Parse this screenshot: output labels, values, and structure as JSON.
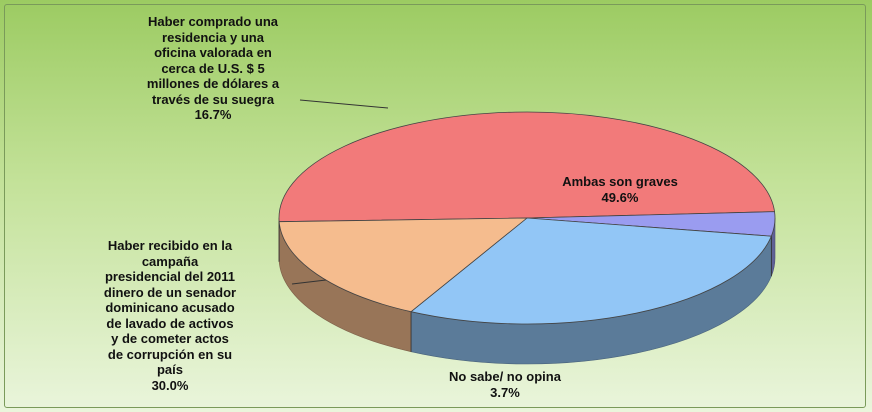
{
  "chart_data": {
    "type": "pie",
    "categories": [
      "Ambas son graves",
      "No sabe/ no opina",
      "Haber recibido en la\ncampaña\npresidencial del 2011\ndinero de un senador\ndominicano acusado\nde lavado de activos\ny de cometer actos\nde corrupción en su\npaís",
      "Haber comprado una\nresidencia y una\noficina valorada en\ncerca de U.S. $ 5\nmillones de dólares a\ntravés de su suegra"
    ],
    "values": [
      49.6,
      3.7,
      30.0,
      16.7
    ],
    "value_labels": [
      "49.6%",
      "3.7%",
      "30.0%",
      "16.7%"
    ],
    "colors": [
      "#f27a7a",
      "#9a9cf0",
      "#92c6f6",
      "#f5bc8e"
    ]
  }
}
